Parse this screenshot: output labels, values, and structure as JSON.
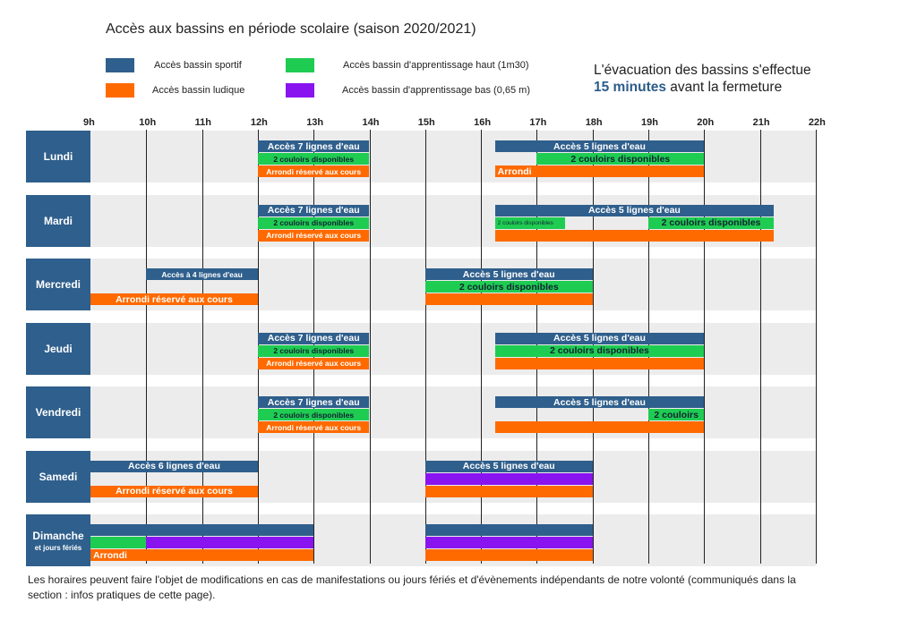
{
  "title": "Accès aux bassins en période scolaire (saison 2020/2021)",
  "colors": {
    "sportif": "#2f5f8c",
    "ludique": "#ff6a00",
    "haut": "#1fcc52",
    "bas": "#8a14f0",
    "day": "#2f5f8c",
    "rowbg": "#ececec"
  },
  "legend": [
    {
      "label": "Accès bassin sportif",
      "color": "sportif"
    },
    {
      "label": "Accès bassin ludique",
      "color": "ludique"
    },
    {
      "label": "Accès bassin d'apprentissage haut (1m30)",
      "color": "haut"
    },
    {
      "label": "Accès bassin d'apprentissage bas (0,65 m)",
      "color": "bas"
    }
  ],
  "notice": {
    "line1": "L'évacuation des bassins s'effectue",
    "highlight": "15 minutes",
    "line2_rest": " avant la fermeture"
  },
  "hours": [
    "9h",
    "10h",
    "11h",
    "12h",
    "13h",
    "14h",
    "15h",
    "16h",
    "17h",
    "18h",
    "19h",
    "20h",
    "21h",
    "22h"
  ],
  "days": [
    {
      "name": "Lundi",
      "bars": [
        {
          "start": 12,
          "end": 14,
          "lane": 0,
          "color": "sportif",
          "text": "Accès 7 lignes d'eau"
        },
        {
          "start": 12,
          "end": 14,
          "lane": 1,
          "color": "haut",
          "text": "2 couloirs disponibles",
          "size": "s"
        },
        {
          "start": 12,
          "end": 14,
          "lane": 2,
          "color": "ludique",
          "text": "Arrondi réservé aux cours",
          "size": "s"
        },
        {
          "start": 16.25,
          "end": 20,
          "lane": 0,
          "color": "sportif",
          "text": "Accès 5 lignes d'eau"
        },
        {
          "start": 17,
          "end": 20,
          "lane": 1,
          "color": "haut",
          "text": "2 couloirs disponibles"
        },
        {
          "start": 16.25,
          "end": 20,
          "lane": 2,
          "color": "ludique",
          "text": "Arrondi",
          "align": "left"
        }
      ]
    },
    {
      "name": "Mardi",
      "bars": [
        {
          "start": 12,
          "end": 14,
          "lane": 0,
          "color": "sportif",
          "text": "Accès 7 lignes d'eau"
        },
        {
          "start": 12,
          "end": 14,
          "lane": 1,
          "color": "haut",
          "text": "2 couloirs disponibles",
          "size": "s"
        },
        {
          "start": 12,
          "end": 14,
          "lane": 2,
          "color": "ludique",
          "text": "Arrondi réservé aux cours",
          "size": "s"
        },
        {
          "start": 16.25,
          "end": 21.25,
          "lane": 0,
          "color": "sportif",
          "text": "Accès 5 lignes d'eau"
        },
        {
          "start": 16.25,
          "end": 17.5,
          "lane": 1,
          "color": "haut",
          "text": "2 couloirs disponibles",
          "size": "xs",
          "align": "left"
        },
        {
          "start": 19,
          "end": 21.25,
          "lane": 1,
          "color": "haut",
          "text": "2 couloirs disponibles"
        },
        {
          "start": 16.25,
          "end": 21.25,
          "lane": 2,
          "color": "ludique",
          "text": ""
        }
      ]
    },
    {
      "name": "Mercredi",
      "bars": [
        {
          "start": 10,
          "end": 12,
          "lane": 0,
          "color": "sportif",
          "text": "Accès à 4 lignes d'eau",
          "size": "s"
        },
        {
          "start": 9,
          "end": 12,
          "lane": 2,
          "color": "ludique",
          "text": "Arrondi réservé aux cours"
        },
        {
          "start": 15,
          "end": 18,
          "lane": 0,
          "color": "sportif",
          "text": "Accès 5 lignes d'eau"
        },
        {
          "start": 15,
          "end": 18,
          "lane": 1,
          "color": "haut",
          "text": "2 couloirs disponibles"
        },
        {
          "start": 15,
          "end": 18,
          "lane": 2,
          "color": "ludique",
          "text": ""
        }
      ]
    },
    {
      "name": "Jeudi",
      "bars": [
        {
          "start": 12,
          "end": 14,
          "lane": 0,
          "color": "sportif",
          "text": "Accès 7 lignes d'eau"
        },
        {
          "start": 12,
          "end": 14,
          "lane": 1,
          "color": "haut",
          "text": "2 couloirs disponibles",
          "size": "s"
        },
        {
          "start": 12,
          "end": 14,
          "lane": 2,
          "color": "ludique",
          "text": "Arrondi réservé aux cours",
          "size": "s"
        },
        {
          "start": 16.25,
          "end": 20,
          "lane": 0,
          "color": "sportif",
          "text": "Accès 5 lignes d'eau"
        },
        {
          "start": 16.25,
          "end": 20,
          "lane": 1,
          "color": "haut",
          "text": "2 couloirs disponibles"
        },
        {
          "start": 16.25,
          "end": 20,
          "lane": 2,
          "color": "ludique",
          "text": ""
        }
      ]
    },
    {
      "name": "Vendredi",
      "bars": [
        {
          "start": 12,
          "end": 14,
          "lane": 0,
          "color": "sportif",
          "text": "Accès 7 lignes d'eau"
        },
        {
          "start": 12,
          "end": 14,
          "lane": 1,
          "color": "haut",
          "text": "2 couloirs disponibles",
          "size": "s"
        },
        {
          "start": 12,
          "end": 14,
          "lane": 2,
          "color": "ludique",
          "text": "Arrondi réservé aux cours",
          "size": "s"
        },
        {
          "start": 16.25,
          "end": 20,
          "lane": 0,
          "color": "sportif",
          "text": "Accès 5 lignes d'eau"
        },
        {
          "start": 19,
          "end": 20,
          "lane": 1,
          "color": "haut",
          "text": "2 couloirs"
        },
        {
          "start": 16.25,
          "end": 20,
          "lane": 2,
          "color": "ludique",
          "text": ""
        }
      ]
    },
    {
      "name": "Samedi",
      "bars": [
        {
          "start": 9,
          "end": 12,
          "lane": 0,
          "color": "sportif",
          "text": "Accès 6 lignes d'eau"
        },
        {
          "start": 9,
          "end": 12,
          "lane": 2,
          "color": "ludique",
          "text": "Arrondi réservé aux cours"
        },
        {
          "start": 15,
          "end": 18,
          "lane": 0,
          "color": "sportif",
          "text": "Accès 5 lignes d'eau"
        },
        {
          "start": 15,
          "end": 18,
          "lane": 1,
          "color": "bas",
          "text": ""
        },
        {
          "start": 15,
          "end": 18,
          "lane": 2,
          "color": "ludique",
          "text": ""
        }
      ]
    },
    {
      "name": "Dimanche",
      "sub": "et jours fériés",
      "bars": [
        {
          "start": 9,
          "end": 13,
          "lane": 0,
          "color": "sportif",
          "text": ""
        },
        {
          "start": 9,
          "end": 10,
          "lane": 1,
          "color": "haut",
          "text": ""
        },
        {
          "start": 10,
          "end": 13,
          "lane": 1,
          "color": "bas",
          "text": ""
        },
        {
          "start": 9,
          "end": 13,
          "lane": 2,
          "color": "ludique",
          "text": "Arrondi",
          "align": "left"
        },
        {
          "start": 15,
          "end": 18,
          "lane": 0,
          "color": "sportif",
          "text": ""
        },
        {
          "start": 15,
          "end": 18,
          "lane": 1,
          "color": "bas",
          "text": ""
        },
        {
          "start": 15,
          "end": 18,
          "lane": 2,
          "color": "ludique",
          "text": ""
        }
      ]
    }
  ],
  "footer": "Les horaires peuvent faire l'objet de modifications en cas de manifestations ou jours fériés et d'évènements indépendants de notre volonté (communiqués dans la section : infos pratiques de cette page)."
}
